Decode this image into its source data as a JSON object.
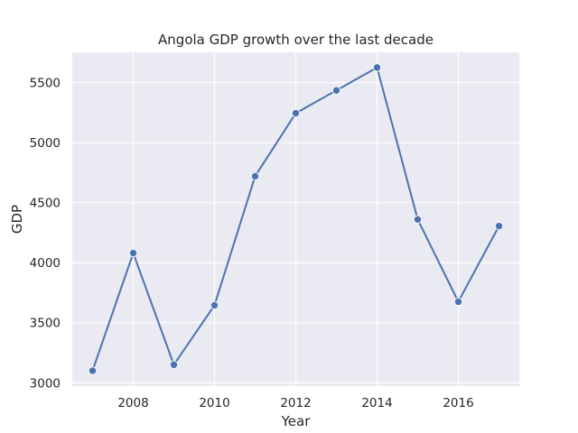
{
  "chart_data": {
    "type": "line",
    "title": "Angola GDP growth over the last decade",
    "xlabel": "Year",
    "ylabel": "GDP",
    "x": [
      2007,
      2008,
      2009,
      2010,
      2011,
      2012,
      2013,
      2014,
      2015,
      2016,
      2017
    ],
    "series": [
      {
        "values": [
          3100,
          4080,
          3150,
          3645,
          4720,
          5245,
          5435,
          5625,
          4360,
          3675,
          4305
        ],
        "color": "#4c72b0"
      }
    ],
    "xlim": [
      2006.5,
      2017.5
    ],
    "ylim": [
      2972,
      5752
    ],
    "xticks": [
      2008,
      2010,
      2012,
      2014,
      2016
    ],
    "yticks": [
      3000,
      3500,
      4000,
      4500,
      5000,
      5500
    ],
    "grid": true,
    "marker": "circle",
    "style": {
      "plot_background": "#eaeaf2",
      "grid_color": "#ffffff",
      "page_background": "#ffffff",
      "text_color": "#262626",
      "marker_edge": "#ffffff"
    }
  }
}
